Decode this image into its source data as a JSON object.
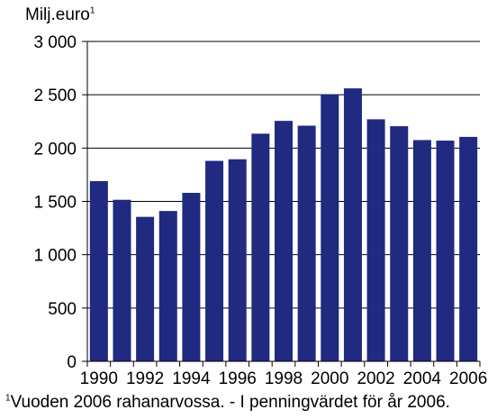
{
  "unit_label": "Milj.euro",
  "unit_sup": "1",
  "footnote_sup": "1",
  "footnote": "Vuoden 2006 rahanarvossa. - I penningvärdet för år 2006.",
  "chart_data": {
    "type": "bar",
    "title": "",
    "xlabel": "",
    "ylabel": "Milj.euro",
    "categories": [
      "1990",
      "1991",
      "1992",
      "1993",
      "1994",
      "1995",
      "1996",
      "1997",
      "1998",
      "1999",
      "2000",
      "2001",
      "2002",
      "2003",
      "2004",
      "2005",
      "2006"
    ],
    "x_tick_labels": [
      "1990",
      "1992",
      "1994",
      "1996",
      "1998",
      "2000",
      "2002",
      "2004",
      "2006"
    ],
    "values": [
      1690,
      1515,
      1355,
      1410,
      1580,
      1880,
      1895,
      2135,
      2255,
      2210,
      2505,
      2560,
      2270,
      2205,
      2075,
      2070,
      2105
    ],
    "ylim": [
      0,
      3000
    ],
    "y_ticks": [
      0,
      500,
      1000,
      1500,
      2000,
      2500,
      3000
    ],
    "y_tick_labels": [
      "0",
      "500",
      "1 000",
      "1 500",
      "2 000",
      "2 500",
      "3 000"
    ],
    "bar_color": "#1f2a80",
    "grid": true,
    "legend": "none"
  }
}
